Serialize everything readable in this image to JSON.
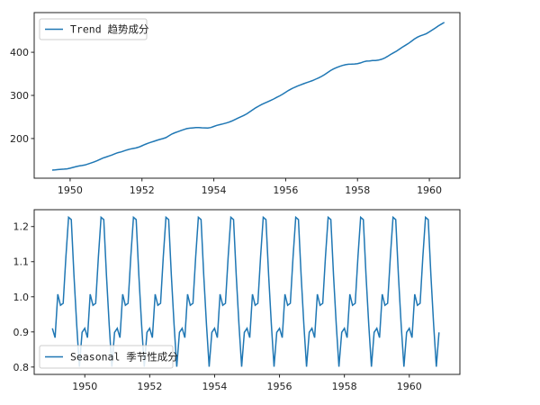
{
  "chart_data": [
    {
      "type": "line",
      "frequency": "monthly",
      "x_start": "1949-07",
      "series": [
        {
          "name": "Trend 趋势成分",
          "color": "#1f77b4",
          "values": [
            126.79,
            127.25,
            127.96,
            128.58,
            129.0,
            129.75,
            131.25,
            133.08,
            134.92,
            136.42,
            137.42,
            138.75,
            140.92,
            143.17,
            145.71,
            148.42,
            151.54,
            154.71,
            157.13,
            159.54,
            161.83,
            164.79,
            167.17,
            168.96,
            171.25,
            173.58,
            175.46,
            176.83,
            178.04,
            180.17,
            183.13,
            186.21,
            189.04,
            191.29,
            193.58,
            195.83,
            198.04,
            199.75,
            202.21,
            206.25,
            210.42,
            213.38,
            215.83,
            218.5,
            220.92,
            222.92,
            224.08,
            224.71,
            225.33,
            225.33,
            224.96,
            224.58,
            224.46,
            225.54,
            228.0,
            230.46,
            232.25,
            233.92,
            235.63,
            237.75,
            240.5,
            243.96,
            247.17,
            250.25,
            253.5,
            257.13,
            261.83,
            266.67,
            271.13,
            275.21,
            278.83,
            282.0,
            285.13,
            288.25,
            291.75,
            295.5,
            299.0,
            303.0,
            307.38,
            311.67,
            315.5,
            318.75,
            321.75,
            324.5,
            327.08,
            329.54,
            331.83,
            334.46,
            337.54,
            340.54,
            344.08,
            348.25,
            353.0,
            357.63,
            361.38,
            364.5,
            367.17,
            369.46,
            371.21,
            372.17,
            372.42,
            372.75,
            373.63,
            375.25,
            377.92,
            379.5,
            380.0,
            380.71,
            380.96,
            381.83,
            383.67,
            386.5,
            390.33,
            394.71,
            398.63,
            402.54,
            407.17,
            411.88,
            416.33,
            420.5,
            425.5,
            430.71,
            435.13,
            438.25,
            440.38,
            443.08,
            447.29,
            451.83,
            456.25,
            461.38,
            465.21,
            469.33
          ]
        }
      ],
      "xlim": [
        1949.0,
        1960.85
      ],
      "ylim": [
        108,
        492
      ],
      "xticks": [
        "1950",
        "1952",
        "1954",
        "1956",
        "1958",
        "1960"
      ],
      "yticks": [
        "200",
        "300",
        "400"
      ],
      "legend": "upper-left",
      "grid": false
    },
    {
      "type": "line",
      "frequency": "monthly",
      "x_start": "1949-01",
      "series": [
        {
          "name": "Seasonal 季节性成分",
          "color": "#1f77b4",
          "pattern_per_year": [
            0.9102,
            0.8836,
            1.0073,
            0.9759,
            0.9814,
            1.1127,
            1.2265,
            1.2199,
            1.0604,
            0.9217,
            0.8011,
            0.8988
          ],
          "years": 12
        }
      ],
      "xlim": [
        1948.44,
        1961.56
      ],
      "ylim": [
        0.779,
        1.248
      ],
      "xticks": [
        "1950",
        "1952",
        "1954",
        "1956",
        "1958",
        "1960"
      ],
      "yticks": [
        "0.8",
        "0.9",
        "1.0",
        "1.1",
        "1.2"
      ],
      "legend": "lower-left",
      "grid": false
    }
  ]
}
